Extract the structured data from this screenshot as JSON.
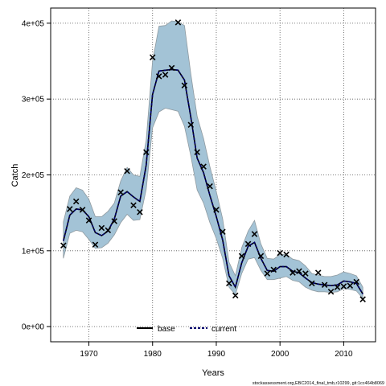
{
  "chart_data": {
    "type": "line",
    "xlabel": "Years",
    "ylabel": "Catch",
    "xlim": [
      1964,
      2015
    ],
    "ylim": [
      -20000,
      420000
    ],
    "grid": true,
    "x_ticks": [
      1970,
      1980,
      1990,
      2000,
      2010
    ],
    "x_tick_labels": [
      "1970",
      "1980",
      "1990",
      "2000",
      "2010"
    ],
    "y_ticks": [
      0,
      100000,
      200000,
      300000,
      400000
    ],
    "y_tick_labels": [
      "0e+00",
      "1e+05",
      "2e+05",
      "3e+05",
      "4e+05"
    ],
    "legend_position": "bottom-center",
    "footer_text": "stockassessment.org,EBC2014_final_tmb,r10299, git:1cc464b8069",
    "colors": {
      "band": "#a3c3d6",
      "band_edge": "#8f9aa0",
      "base": "#000000",
      "current": "#00006e",
      "points": "#000000",
      "grid": "#555555"
    },
    "series": [
      {
        "name": "base",
        "style": "solid"
      },
      {
        "name": "current",
        "style": "dashed"
      }
    ],
    "years": [
      1966,
      1967,
      1968,
      1969,
      1970,
      1971,
      1972,
      1973,
      1974,
      1975,
      1976,
      1977,
      1978,
      1979,
      1980,
      1981,
      1982,
      1983,
      1984,
      1985,
      1986,
      1987,
      1988,
      1989,
      1990,
      1991,
      1992,
      1993,
      1994,
      1995,
      1996,
      1997,
      1998,
      1999,
      2000,
      2001,
      2002,
      2003,
      2004,
      2005,
      2006,
      2007,
      2008,
      2009,
      2010,
      2011,
      2012,
      2013
    ],
    "estimate": [
      113000,
      147000,
      155000,
      154000,
      145000,
      124000,
      120000,
      126000,
      142000,
      172000,
      178000,
      171000,
      165000,
      213000,
      306000,
      337000,
      338000,
      339000,
      338000,
      325000,
      276000,
      222000,
      203000,
      173000,
      145000,
      114000,
      67000,
      52000,
      84000,
      106000,
      111000,
      90000,
      74000,
      73000,
      79000,
      79000,
      73000,
      71000,
      64000,
      58000,
      56000,
      55000,
      54000,
      55000,
      60000,
      59000,
      57000,
      43000
    ],
    "lower": [
      90000,
      123000,
      127000,
      125000,
      115000,
      103000,
      104000,
      110000,
      121000,
      137000,
      148000,
      140000,
      141000,
      181000,
      262000,
      283000,
      288000,
      286000,
      284000,
      264000,
      225000,
      180000,
      163000,
      137000,
      116000,
      90000,
      52000,
      42000,
      70000,
      89000,
      91000,
      74000,
      62000,
      62000,
      64000,
      66000,
      61000,
      59000,
      52000,
      48000,
      46000,
      46000,
      45000,
      46000,
      50000,
      49000,
      47000,
      37000
    ],
    "upper": [
      138000,
      172000,
      183000,
      180000,
      168000,
      145000,
      145000,
      152000,
      163000,
      192000,
      210000,
      200000,
      198000,
      246000,
      350000,
      396000,
      397000,
      403000,
      402000,
      397000,
      333000,
      277000,
      248000,
      211000,
      178000,
      142000,
      85000,
      67000,
      104000,
      126000,
      140000,
      109000,
      90000,
      89000,
      95000,
      95000,
      89000,
      87000,
      80000,
      70000,
      68000,
      66000,
      66000,
      68000,
      72000,
      70000,
      67000,
      52000
    ],
    "observed_catch": [
      [
        1966,
        107000
      ],
      [
        1967,
        155000
      ],
      [
        1968,
        165000
      ],
      [
        1969,
        154000
      ],
      [
        1970,
        140000
      ],
      [
        1971,
        108000
      ],
      [
        1972,
        130000
      ],
      [
        1973,
        127000
      ],
      [
        1974,
        139000
      ],
      [
        1975,
        177000
      ],
      [
        1976,
        205000
      ],
      [
        1977,
        160000
      ],
      [
        1978,
        151000
      ],
      [
        1979,
        230000
      ],
      [
        1980,
        355000
      ],
      [
        1981,
        330000
      ],
      [
        1982,
        332000
      ],
      [
        1983,
        341000
      ],
      [
        1984,
        401000
      ],
      [
        1985,
        318000
      ],
      [
        1986,
        266000
      ],
      [
        1987,
        230000
      ],
      [
        1988,
        211000
      ],
      [
        1989,
        185000
      ],
      [
        1990,
        154000
      ],
      [
        1991,
        125000
      ],
      [
        1992,
        57000
      ],
      [
        1993,
        41000
      ],
      [
        1994,
        93000
      ],
      [
        1995,
        109000
      ],
      [
        1996,
        122000
      ],
      [
        1997,
        93000
      ],
      [
        1998,
        70000
      ],
      [
        1999,
        75000
      ],
      [
        2000,
        97000
      ],
      [
        2001,
        95000
      ],
      [
        2002,
        71000
      ],
      [
        2003,
        73000
      ],
      [
        2004,
        70000
      ],
      [
        2005,
        57000
      ],
      [
        2006,
        71000
      ],
      [
        2007,
        55000
      ],
      [
        2008,
        46000
      ],
      [
        2009,
        52000
      ],
      [
        2010,
        53000
      ],
      [
        2011,
        54000
      ],
      [
        2012,
        59000
      ],
      [
        2013,
        36000
      ]
    ]
  }
}
